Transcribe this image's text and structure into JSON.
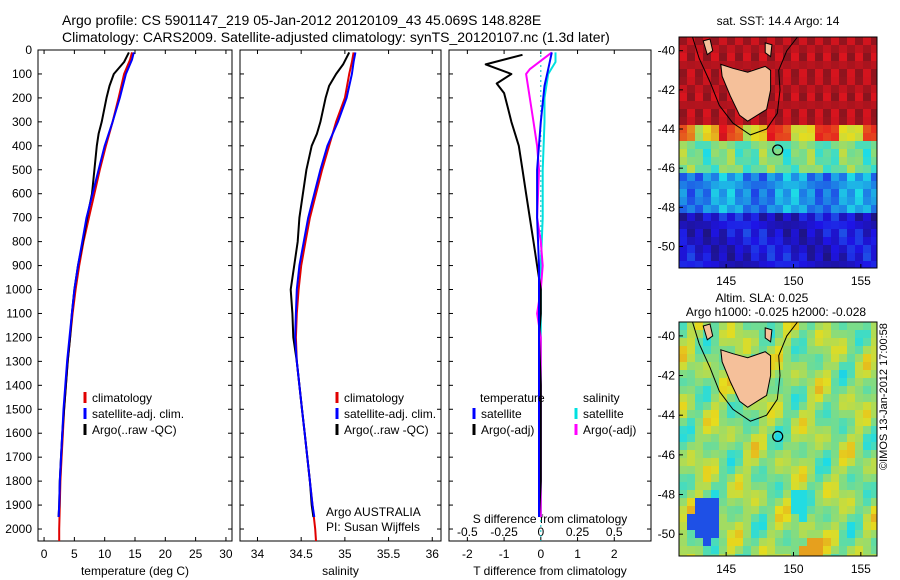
{
  "header": {
    "line1": "Argo profile: CS 5901147_219 05-Jan-2012 20120109_43 45.069S 148.828E",
    "line2": "Climatology: CARS2009. Satellite-adjusted climatology: synTS_20120107.nc (1.3d later)"
  },
  "credit": "©IMOS 13-Jan-2012 17:00:58",
  "panel_notes": {
    "argo": "Argo AUSTRALIA",
    "pi": "PI: Susan Wijffels"
  },
  "legends": {
    "temp": [
      "climatology",
      "satellite-adj. clim.",
      "Argo(..raw -QC)"
    ],
    "sal": [
      "climatology",
      "satellite-adj. clim.",
      "Argo(..raw -QC)"
    ],
    "diff_t_title": "temperature",
    "diff_s_title": "salinity",
    "diff_t": [
      "satellite",
      "Argo(-adj)"
    ],
    "diff_s": [
      "satellite",
      "Argo(-adj)"
    ]
  },
  "colors": {
    "climatology": "#e00000",
    "satellite": "#0000ff",
    "argo": "#000000",
    "sal_satellite": "#00e0e0",
    "sal_argo": "#ff00ff"
  },
  "maps": {
    "sst_title": "sat. SST: 14.4 Argo: 14",
    "sla_title_1": "Altim. SLA: 0.025",
    "sla_title_2": "Argo h1000: -0.025 h2000: -0.028",
    "lat_ticks": [
      "-40",
      "-42",
      "-44",
      "-46",
      "-48",
      "-50"
    ],
    "lon_ticks": [
      "145",
      "150",
      "155"
    ],
    "argo_marker": {
      "lon": 148.828,
      "lat": -45.069
    }
  },
  "chart_data": [
    {
      "type": "line",
      "xlabel": "temperature (deg C)",
      "ylabel": "",
      "xlim": [
        -1,
        31
      ],
      "ylim": [
        2050,
        0
      ],
      "xticks": [
        0,
        5,
        10,
        15,
        20,
        25,
        30
      ],
      "yticks": [
        0,
        100,
        200,
        300,
        400,
        500,
        600,
        700,
        800,
        900,
        1000,
        1100,
        1200,
        1300,
        1400,
        1500,
        1600,
        1700,
        1800,
        1900,
        2000
      ],
      "series": [
        {
          "name": "climatology",
          "color": "#e00000",
          "points": [
            [
              14.5,
              10
            ],
            [
              14.2,
              40
            ],
            [
              13.2,
              100
            ],
            [
              12.3,
              200
            ],
            [
              11.3,
              300
            ],
            [
              10.2,
              400
            ],
            [
              9.2,
              500
            ],
            [
              8.3,
              600
            ],
            [
              7.4,
              700
            ],
            [
              6.5,
              800
            ],
            [
              5.8,
              900
            ],
            [
              5.2,
              1000
            ],
            [
              4.7,
              1100
            ],
            [
              4.3,
              1200
            ],
            [
              3.9,
              1300
            ],
            [
              3.6,
              1400
            ],
            [
              3.3,
              1500
            ],
            [
              3.1,
              1600
            ],
            [
              2.9,
              1700
            ],
            [
              2.7,
              1800
            ],
            [
              2.6,
              1900
            ],
            [
              2.5,
              2000
            ],
            [
              2.5,
              2050
            ]
          ]
        },
        {
          "name": "satellite-adj. clim.",
          "color": "#0000ff",
          "points": [
            [
              14.8,
              10
            ],
            [
              14.5,
              40
            ],
            [
              13.5,
              100
            ],
            [
              12.5,
              200
            ],
            [
              11.3,
              300
            ],
            [
              10.0,
              400
            ],
            [
              9.0,
              500
            ],
            [
              8.0,
              600
            ],
            [
              7.0,
              700
            ],
            [
              6.3,
              800
            ],
            [
              5.6,
              900
            ],
            [
              5.0,
              1000
            ],
            [
              4.6,
              1100
            ],
            [
              4.2,
              1200
            ],
            [
              3.8,
              1300
            ],
            [
              3.5,
              1400
            ],
            [
              3.2,
              1500
            ],
            [
              3.0,
              1600
            ],
            [
              2.8,
              1700
            ],
            [
              2.6,
              1800
            ],
            [
              2.5,
              1900
            ],
            [
              2.4,
              1950
            ]
          ]
        },
        {
          "name": "Argo(..raw -QC)",
          "color": "#000000",
          "points": [
            [
              14.0,
              10
            ],
            [
              13.2,
              50
            ],
            [
              11.5,
              100
            ],
            [
              10.8,
              150
            ],
            [
              10.3,
              200
            ],
            [
              9.5,
              300
            ],
            [
              9.0,
              350
            ],
            [
              8.7,
              400
            ],
            [
              8.3,
              500
            ],
            [
              7.9,
              600
            ],
            [
              7.1,
              700
            ],
            [
              6.4,
              800
            ],
            [
              5.6,
              900
            ],
            [
              5.0,
              1000
            ],
            [
              4.6,
              1100
            ],
            [
              4.3,
              1200
            ],
            [
              3.9,
              1300
            ],
            [
              3.6,
              1400
            ],
            [
              3.3,
              1500
            ],
            [
              3.0,
              1600
            ],
            [
              2.8,
              1700
            ],
            [
              2.6,
              1800
            ],
            [
              2.5,
              1900
            ],
            [
              2.4,
              1950
            ]
          ]
        }
      ]
    },
    {
      "type": "line",
      "xlabel": "salinity",
      "ylabel": "",
      "xlim": [
        33.8,
        36.1
      ],
      "ylim": [
        2050,
        0
      ],
      "xticks": [
        34,
        34.5,
        35,
        35.5,
        36
      ],
      "series": [
        {
          "name": "climatology",
          "color": "#e00000",
          "points": [
            [
              35.1,
              10
            ],
            [
              35.08,
              50
            ],
            [
              35.05,
              100
            ],
            [
              35.0,
              200
            ],
            [
              34.9,
              300
            ],
            [
              34.82,
              400
            ],
            [
              34.74,
              500
            ],
            [
              34.67,
              600
            ],
            [
              34.6,
              700
            ],
            [
              34.55,
              800
            ],
            [
              34.5,
              900
            ],
            [
              34.47,
              1000
            ],
            [
              34.45,
              1100
            ],
            [
              34.44,
              1200
            ],
            [
              34.45,
              1300
            ],
            [
              34.48,
              1400
            ],
            [
              34.51,
              1500
            ],
            [
              34.54,
              1600
            ],
            [
              34.57,
              1700
            ],
            [
              34.6,
              1800
            ],
            [
              34.63,
              1900
            ],
            [
              34.66,
              2000
            ],
            [
              34.67,
              2050
            ]
          ]
        },
        {
          "name": "satellite-adj. clim.",
          "color": "#0000ff",
          "points": [
            [
              35.12,
              10
            ],
            [
              35.1,
              50
            ],
            [
              35.08,
              100
            ],
            [
              35.02,
              200
            ],
            [
              34.92,
              300
            ],
            [
              34.8,
              400
            ],
            [
              34.72,
              500
            ],
            [
              34.65,
              600
            ],
            [
              34.58,
              700
            ],
            [
              34.53,
              800
            ],
            [
              34.48,
              900
            ],
            [
              34.45,
              1000
            ],
            [
              34.44,
              1100
            ],
            [
              34.43,
              1200
            ],
            [
              34.45,
              1300
            ],
            [
              34.48,
              1400
            ],
            [
              34.51,
              1500
            ],
            [
              34.54,
              1600
            ],
            [
              34.57,
              1700
            ],
            [
              34.6,
              1800
            ],
            [
              34.63,
              1900
            ],
            [
              34.65,
              1950
            ]
          ]
        },
        {
          "name": "Argo(..raw -QC)",
          "color": "#000000",
          "points": [
            [
              35.05,
              10
            ],
            [
              34.98,
              60
            ],
            [
              34.9,
              100
            ],
            [
              34.82,
              150
            ],
            [
              34.78,
              200
            ],
            [
              34.72,
              300
            ],
            [
              34.68,
              350
            ],
            [
              34.62,
              400
            ],
            [
              34.56,
              500
            ],
            [
              34.52,
              600
            ],
            [
              34.48,
              700
            ],
            [
              34.46,
              800
            ],
            [
              34.42,
              900
            ],
            [
              34.38,
              1000
            ],
            [
              34.4,
              1100
            ],
            [
              34.41,
              1200
            ],
            [
              34.45,
              1300
            ],
            [
              34.48,
              1400
            ],
            [
              34.51,
              1500
            ],
            [
              34.54,
              1600
            ],
            [
              34.57,
              1700
            ],
            [
              34.6,
              1800
            ],
            [
              34.62,
              1900
            ],
            [
              34.64,
              1950
            ]
          ]
        }
      ]
    },
    {
      "type": "line",
      "xlabel": "T difference from climatology",
      "ylabel": "",
      "top_xlabel": "S difference from climatology",
      "xlim": [
        -2.5,
        3
      ],
      "ylim": [
        2050,
        0
      ],
      "xticks": [
        -2,
        -1,
        0,
        1,
        2
      ],
      "xtick_labels": [
        "-2",
        "-1",
        "0",
        "1",
        "2"
      ],
      "s_xticks": [
        -0.5,
        -0.25,
        0,
        0.25,
        0.5
      ],
      "s_xtick_labels": [
        "-0.5",
        "-0.25",
        "0",
        "0.25",
        "0.5"
      ],
      "series": [
        {
          "name": "temperature satellite",
          "color": "#0000ff",
          "points": [
            [
              0.3,
              10
            ],
            [
              0.2,
              80
            ],
            [
              0.1,
              150
            ],
            [
              0.0,
              300
            ],
            [
              -0.1,
              500
            ],
            [
              -0.1,
              700
            ],
            [
              -0.05,
              900
            ],
            [
              -0.05,
              1200
            ],
            [
              -0.05,
              1600
            ],
            [
              -0.05,
              1950
            ]
          ]
        },
        {
          "name": "temperature Argo(-adj)",
          "color": "#000000",
          "points": [
            [
              -0.5,
              20
            ],
            [
              -1.5,
              60
            ],
            [
              -0.8,
              100
            ],
            [
              -1.2,
              140
            ],
            [
              -1.0,
              180
            ],
            [
              -0.9,
              240
            ],
            [
              -0.8,
              300
            ],
            [
              -0.7,
              350
            ],
            [
              -0.6,
              400
            ],
            [
              -0.5,
              500
            ],
            [
              -0.4,
              600
            ],
            [
              -0.3,
              700
            ],
            [
              -0.2,
              800
            ],
            [
              -0.1,
              900
            ],
            [
              0.0,
              1000
            ],
            [
              0.0,
              1100
            ],
            [
              -0.05,
              1200
            ],
            [
              0.0,
              1400
            ],
            [
              0.0,
              1600
            ],
            [
              0.0,
              1800
            ],
            [
              -0.05,
              1950
            ]
          ]
        },
        {
          "name": "salinity satellite",
          "color": "#00e0e0",
          "points": [
            [
              0.4,
              10
            ],
            [
              0.4,
              50
            ],
            [
              0.2,
              100
            ],
            [
              0.1,
              200
            ],
            [
              0.1,
              300
            ],
            [
              0.05,
              500
            ],
            [
              0.05,
              700
            ],
            [
              0.0,
              900
            ],
            [
              0.0,
              1200
            ],
            [
              0.0,
              1600
            ],
            [
              0.0,
              1950
            ]
          ]
        },
        {
          "name": "salinity Argo(-adj)",
          "color": "#ff00ff",
          "points": [
            [
              0.3,
              10
            ],
            [
              -0.3,
              80
            ],
            [
              -0.4,
              100
            ],
            [
              -0.3,
              200
            ],
            [
              -0.2,
              300
            ],
            [
              -0.1,
              400
            ],
            [
              -0.05,
              500
            ],
            [
              -0.1,
              700
            ],
            [
              0.0,
              800
            ],
            [
              0.05,
              900
            ],
            [
              0.0,
              1000
            ],
            [
              -0.1,
              1100
            ],
            [
              0.0,
              1200
            ],
            [
              0.0,
              1400
            ],
            [
              0.0,
              1600
            ],
            [
              0.0,
              1950
            ]
          ]
        }
      ]
    }
  ]
}
